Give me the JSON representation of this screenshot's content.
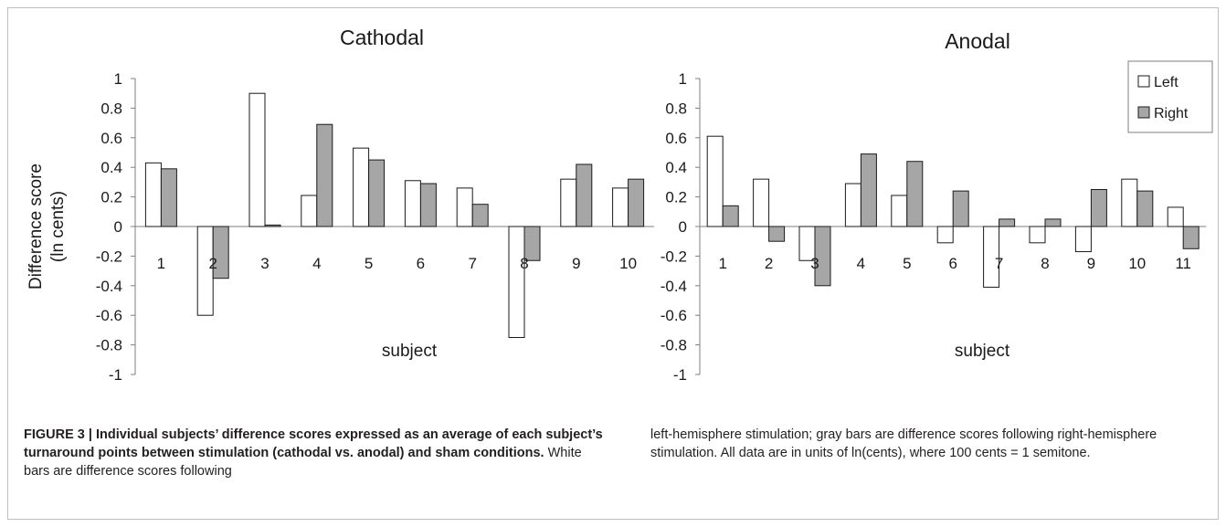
{
  "chart_data": [
    {
      "type": "bar",
      "title": "Cathodal",
      "xlabel": "subject",
      "ylabel": "Difference score",
      "ylabel2": "(ln cents)",
      "ylim": [
        -1,
        1
      ],
      "yticks": [
        "1",
        "0.8",
        "0.6",
        "0.4",
        "0.2",
        "0",
        "-0.2",
        "-0.4",
        "-0.6",
        "-0.8",
        "-1"
      ],
      "categories": [
        "1",
        "2",
        "3",
        "4",
        "5",
        "6",
        "7",
        "8",
        "9",
        "10"
      ],
      "series": [
        {
          "name": "Left",
          "color": "#ffffff",
          "values": [
            0.43,
            -0.6,
            0.9,
            0.21,
            0.53,
            0.31,
            0.26,
            -0.75,
            0.32,
            0.26
          ]
        },
        {
          "name": "Right",
          "color": "#a6a6a6",
          "values": [
            0.39,
            -0.35,
            0.01,
            0.69,
            0.45,
            0.29,
            0.15,
            -0.23,
            0.42,
            0.32
          ]
        }
      ]
    },
    {
      "type": "bar",
      "title": "Anodal",
      "xlabel": "subject",
      "ylim": [
        -1,
        1
      ],
      "yticks": [
        "1",
        "0.8",
        "0.6",
        "0.4",
        "0.2",
        "0",
        "-0.2",
        "-0.4",
        "-0.6",
        "-0.8",
        "-1"
      ],
      "categories": [
        "1",
        "2",
        "3",
        "4",
        "5",
        "6",
        "7",
        "8",
        "9",
        "10",
        "11"
      ],
      "legend": [
        "Left",
        "Right"
      ],
      "legend_position": "top-right",
      "series": [
        {
          "name": "Left",
          "color": "#ffffff",
          "values": [
            0.61,
            0.32,
            -0.23,
            0.29,
            0.21,
            -0.11,
            -0.41,
            -0.11,
            -0.17,
            0.32,
            0.13
          ]
        },
        {
          "name": "Right",
          "color": "#a6a6a6",
          "values": [
            0.14,
            -0.1,
            -0.4,
            0.49,
            0.44,
            0.24,
            0.05,
            0.05,
            0.25,
            0.24,
            -0.15
          ]
        }
      ]
    }
  ],
  "caption": {
    "label": "FIGURE 3 | Individual subjects’ difference scores expressed as an average of each subject’s turnaround points between stimulation (cathodal vs. anodal) and sham conditions.",
    "text_left": " White bars are difference scores following",
    "text_right": "left-hemisphere stimulation; gray bars are difference scores following right-hemisphere stimulation. All data are in units of ln(cents), where 100 cents = 1 semitone."
  }
}
